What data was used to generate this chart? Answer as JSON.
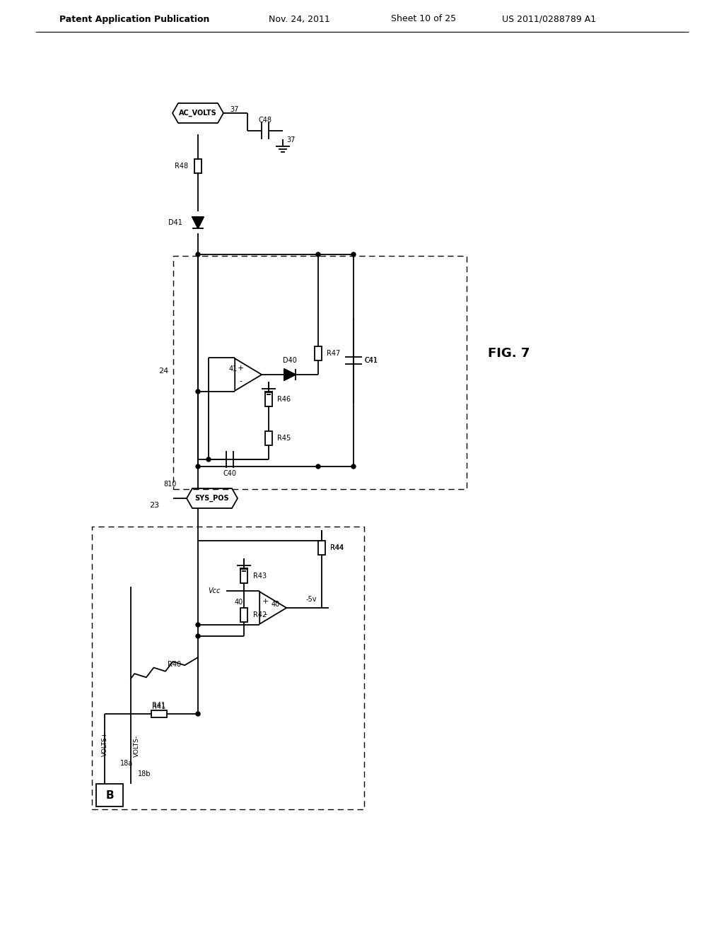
{
  "bg_color": "#ffffff",
  "line_color": "#000000",
  "header_text": "Patent Application Publication",
  "header_date": "Nov. 24, 2011",
  "header_sheet": "Sheet 10 of 25",
  "header_patent": "US 2011/0288789 A1",
  "fig_label": "FIG. 7",
  "lw": 1.3,
  "fs_small": 7,
  "fs_medium": 8,
  "fs_large": 10,
  "fs_figlabel": 13
}
